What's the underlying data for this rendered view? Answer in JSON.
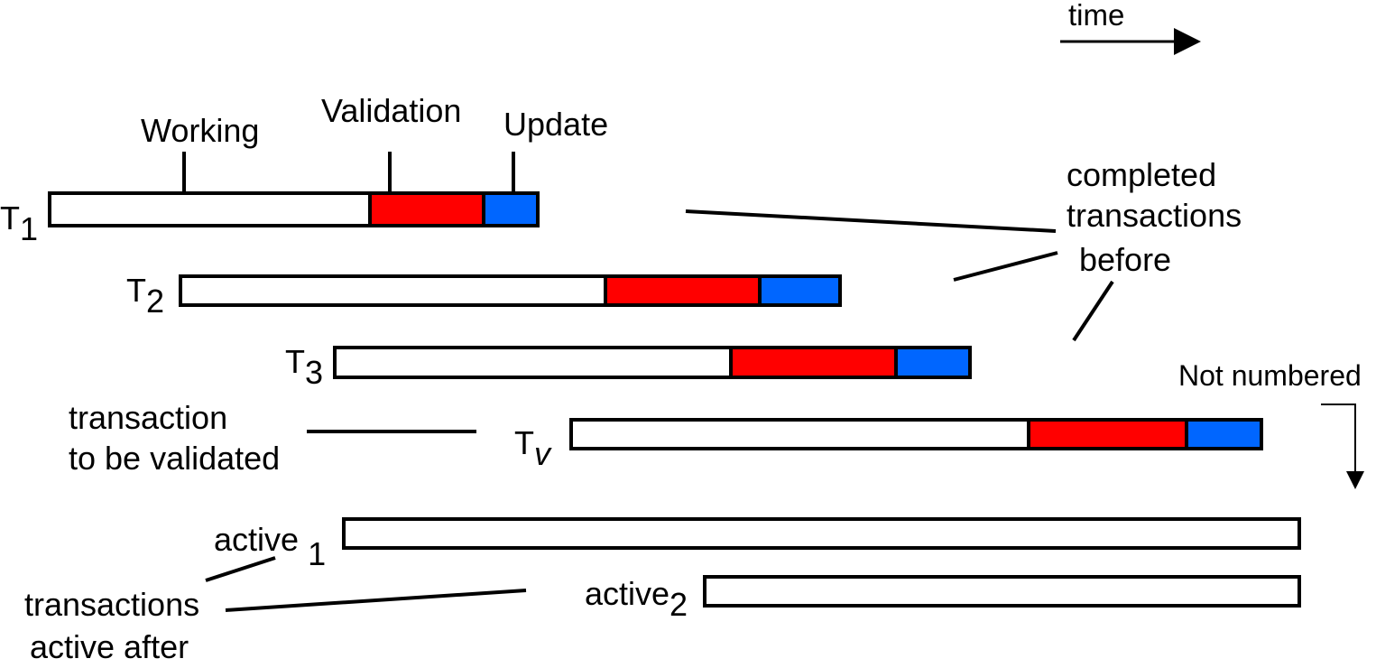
{
  "time_label": "time",
  "phase_labels": {
    "working": "Working",
    "validation": "Validation",
    "update": "Update"
  },
  "transactions": [
    {
      "id": "t1",
      "letter": "T",
      "subscript": "1"
    },
    {
      "id": "t2",
      "letter": "T",
      "subscript": "2"
    },
    {
      "id": "t3",
      "letter": "T",
      "subscript": "3"
    },
    {
      "id": "tv",
      "letter": "T",
      "subscript": "v"
    }
  ],
  "active": [
    {
      "id": "active1",
      "label": "active",
      "subscript": "1"
    },
    {
      "id": "active2",
      "label": "active",
      "subscript": "2"
    }
  ],
  "annotations": {
    "completed_line1": "completed",
    "completed_line2": "transactions",
    "before": "before",
    "not_numbered": "Not numbered",
    "validated_line1": "transaction",
    "validated_line2": "to be validated",
    "active_after_line1": "transactions",
    "active_after_line2": "active after"
  },
  "colors": {
    "working": "#ffffff",
    "validation": "#ff0000",
    "update": "#0066ff",
    "outline": "#000000"
  }
}
